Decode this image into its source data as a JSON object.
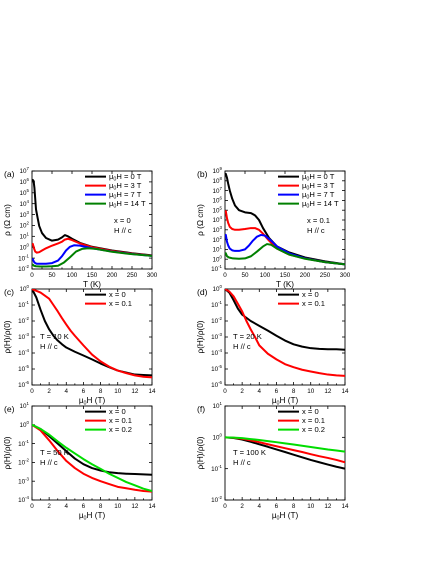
{
  "chart_data": [
    {
      "type": "line",
      "panel_label": "(a)",
      "xlabel": "T (K)",
      "ylabel": "ρ (Ω cm)",
      "yscale": "log",
      "xlim": [
        0,
        300
      ],
      "ylim_exp": [
        -2,
        7
      ],
      "x_ticks": [
        "0",
        "50",
        "100",
        "150",
        "200",
        "250",
        "300"
      ],
      "y_tick_exponents": [
        -2,
        -1,
        0,
        1,
        2,
        3,
        4,
        5,
        6,
        7
      ],
      "annotations": [
        "x = 0",
        "H // c"
      ],
      "legend_position": "top-right",
      "series": [
        {
          "name": "μ0H = 0 T",
          "color": "#000000",
          "x": [
            2,
            4,
            6,
            8,
            10,
            14,
            18,
            25,
            35,
            50,
            65,
            75,
            82,
            90,
            100,
            120,
            150,
            200,
            250,
            300
          ],
          "y": [
            1500000,
            1200000,
            300000,
            30000,
            3000,
            500,
            90,
            20,
            7,
            4,
            5,
            8,
            13,
            10,
            6,
            2.5,
            1.1,
            0.5,
            0.28,
            0.18
          ]
        },
        {
          "name": "μ0H = 3 T",
          "color": "#ff0000",
          "x": [
            2,
            5,
            8,
            12,
            18,
            25,
            35,
            50,
            65,
            75,
            82,
            90,
            100,
            120,
            150,
            200,
            250,
            300
          ],
          "y": [
            2,
            0.8,
            0.4,
            0.32,
            0.35,
            0.5,
            0.8,
            1.4,
            2.2,
            3.2,
            5,
            6,
            4.5,
            2.2,
            1,
            0.45,
            0.26,
            0.17
          ]
        },
        {
          "name": "μ0H = 7 T",
          "color": "#0000ff",
          "x": [
            2,
            5,
            8,
            12,
            18,
            25,
            35,
            50,
            65,
            75,
            85,
            95,
            105,
            120,
            150,
            200,
            250,
            300
          ],
          "y": [
            0.08,
            0.045,
            0.035,
            0.03,
            0.03,
            0.03,
            0.03,
            0.035,
            0.06,
            0.15,
            0.5,
            1.1,
            1.5,
            1.4,
            0.8,
            0.4,
            0.24,
            0.16
          ]
        },
        {
          "name": "μ0H = 14 T",
          "color": "#008000",
          "x": [
            2,
            5,
            10,
            20,
            35,
            50,
            65,
            80,
            95,
            110,
            125,
            140,
            160,
            200,
            250,
            300
          ],
          "y": [
            0.025,
            0.02,
            0.018,
            0.017,
            0.017,
            0.018,
            0.02,
            0.04,
            0.12,
            0.4,
            0.7,
            0.8,
            0.7,
            0.38,
            0.23,
            0.16
          ]
        }
      ]
    },
    {
      "type": "line",
      "panel_label": "(b)",
      "xlabel": "T (K)",
      "ylabel": "ρ (Ω cm)",
      "yscale": "log",
      "xlim": [
        0,
        300
      ],
      "ylim_exp": [
        -1,
        9
      ],
      "x_ticks": [
        "0",
        "50",
        "100",
        "150",
        "200",
        "250",
        "300"
      ],
      "y_tick_exponents": [
        -1,
        0,
        1,
        2,
        3,
        4,
        5,
        6,
        7,
        8,
        9
      ],
      "annotations": [
        "x = 0.1",
        "H // c"
      ],
      "legend_position": "top-right",
      "series": [
        {
          "name": "μ0H = 0 T",
          "color": "#000000",
          "x": [
            2,
            5,
            8,
            12,
            18,
            25,
            35,
            50,
            65,
            75,
            85,
            95,
            110,
            130,
            160,
            200,
            250,
            300
          ],
          "y": [
            500000000,
            200000000,
            50000000,
            10000000,
            1500000,
            300000,
            100000,
            60000,
            50000,
            30000,
            10000,
            1500,
            150,
            20,
            5,
            1.5,
            0.6,
            0.3
          ]
        },
        {
          "name": "μ0H = 3 T",
          "color": "#ff0000",
          "x": [
            2,
            5,
            8,
            12,
            18,
            25,
            35,
            50,
            65,
            75,
            85,
            95,
            110,
            130,
            160,
            200,
            250,
            300
          ],
          "y": [
            80000,
            15000,
            5000,
            2000,
            1200,
            1000,
            1000,
            1200,
            1500,
            1500,
            1000,
            400,
            80,
            12,
            3,
            1.2,
            0.5,
            0.3
          ]
        },
        {
          "name": "μ0H = 7 T",
          "color": "#0000ff",
          "x": [
            2,
            5,
            8,
            12,
            18,
            25,
            35,
            50,
            60,
            70,
            80,
            90,
            100,
            115,
            130,
            160,
            200,
            250,
            300
          ],
          "y": [
            300,
            60,
            25,
            12,
            8,
            7,
            7,
            10,
            25,
            80,
            200,
            300,
            250,
            80,
            20,
            4,
            1.2,
            0.5,
            0.3
          ]
        },
        {
          "name": "μ0H = 14 T",
          "color": "#008000",
          "x": [
            2,
            5,
            10,
            20,
            35,
            50,
            65,
            80,
            95,
            105,
            115,
            130,
            160,
            200,
            250,
            300
          ],
          "y": [
            4,
            2,
            1.5,
            1.2,
            1.1,
            1.2,
            2,
            6,
            20,
            35,
            30,
            12,
            3,
            1.1,
            0.5,
            0.3
          ]
        }
      ]
    },
    {
      "type": "line",
      "panel_label": "(c)",
      "xlabel": "μ0H (T)",
      "ylabel": "ρ(H)/ρ(0)",
      "yscale": "log",
      "xlim": [
        0,
        14
      ],
      "ylim_exp": [
        -6,
        0
      ],
      "x_ticks": [
        "0",
        "2",
        "4",
        "6",
        "8",
        "10",
        "12",
        "14"
      ],
      "y_tick_exponents": [
        -6,
        -5,
        -4,
        -3,
        -2,
        -1,
        0
      ],
      "annotations": [
        "T = 10 K",
        "H // c"
      ],
      "legend_position": "top-right",
      "series": [
        {
          "name": "x = 0",
          "color": "#000000",
          "x": [
            0,
            0.5,
            1,
            1.5,
            2,
            2.5,
            3,
            3.5,
            4,
            5,
            6,
            7,
            8,
            9,
            10,
            11,
            12,
            13,
            14
          ],
          "y": [
            1,
            0.3,
            0.05,
            0.01,
            0.003,
            0.0012,
            0.0006,
            0.00035,
            0.00022,
            0.00012,
            7e-05,
            4e-05,
            2.2e-05,
            1.3e-05,
            8e-06,
            6e-06,
            4.5e-06,
            4.2e-06,
            4e-06
          ]
        },
        {
          "name": "x = 0.1",
          "color": "#ff0000",
          "x": [
            0,
            1,
            2,
            2.5,
            3,
            3.5,
            4,
            4.5,
            5,
            6,
            7,
            8,
            9,
            10,
            11,
            12,
            13,
            14
          ],
          "y": [
            1,
            0.6,
            0.25,
            0.1,
            0.04,
            0.015,
            0.006,
            0.0025,
            0.0012,
            0.0003,
            8e-05,
            3e-05,
            1.4e-05,
            8e-06,
            5.5e-06,
            4e-06,
            3.3e-06,
            3e-06
          ]
        }
      ]
    },
    {
      "type": "line",
      "panel_label": "(d)",
      "xlabel": "μ0H (T)",
      "ylabel": "ρ(H)/ρ(0)",
      "yscale": "log",
      "xlim": [
        0,
        14
      ],
      "ylim_exp": [
        -6,
        0
      ],
      "x_ticks": [
        "0",
        "2",
        "4",
        "6",
        "8",
        "10",
        "12",
        "14"
      ],
      "y_tick_exponents": [
        -6,
        -5,
        -4,
        -3,
        -2,
        -1,
        0
      ],
      "annotations": [
        "T = 20 K",
        "H // c"
      ],
      "legend_position": "top-right",
      "series": [
        {
          "name": "x = 0",
          "color": "#000000",
          "x": [
            0,
            0.5,
            1,
            1.5,
            2,
            3,
            4,
            5,
            6,
            7,
            8,
            9,
            10,
            11,
            12,
            13,
            14
          ],
          "y": [
            1,
            0.6,
            0.2,
            0.06,
            0.025,
            0.01,
            0.005,
            0.0025,
            0.0012,
            0.0006,
            0.00035,
            0.00025,
            0.0002,
            0.00018,
            0.00017,
            0.00017,
            0.00016
          ]
        },
        {
          "name": "x = 0.1",
          "color": "#ff0000",
          "x": [
            0,
            0.5,
            1,
            1.5,
            2,
            2.5,
            3,
            3.5,
            4,
            5,
            6,
            7,
            8,
            9,
            10,
            11,
            12,
            13,
            14
          ],
          "y": [
            1,
            0.7,
            0.35,
            0.12,
            0.04,
            0.01,
            0.003,
            0.001,
            0.0003,
            9e-05,
            4e-05,
            2e-05,
            1.3e-05,
            9e-06,
            7e-06,
            5.5e-06,
            4.5e-06,
            4e-06,
            3.7e-06
          ]
        }
      ]
    },
    {
      "type": "line",
      "panel_label": "(e)",
      "xlabel": "μ0H (T)",
      "ylabel": "ρ(H)/ρ(0)",
      "yscale": "log",
      "xlim": [
        0,
        14
      ],
      "ylim_exp": [
        -4,
        1
      ],
      "x_ticks": [
        "0",
        "2",
        "4",
        "6",
        "8",
        "10",
        "12",
        "14"
      ],
      "y_tick_exponents": [
        -4,
        -3,
        -2,
        -1,
        0,
        1
      ],
      "annotations": [
        "T = 50 K",
        "H // c"
      ],
      "legend_position": "top-right",
      "series": [
        {
          "name": "x = 0",
          "color": "#000000",
          "x": [
            0,
            1,
            2,
            3,
            4,
            5,
            6,
            7,
            8,
            9,
            10,
            11,
            12,
            13,
            14
          ],
          "y": [
            1,
            0.6,
            0.25,
            0.1,
            0.04,
            0.016,
            0.008,
            0.005,
            0.0037,
            0.003,
            0.0027,
            0.0025,
            0.0024,
            0.0023,
            0.0022
          ]
        },
        {
          "name": "x = 0.1",
          "color": "#ff0000",
          "x": [
            0,
            1,
            2,
            3,
            4,
            5,
            6,
            7,
            8,
            9,
            10,
            11,
            12,
            13,
            14
          ],
          "y": [
            1,
            0.5,
            0.15,
            0.04,
            0.012,
            0.005,
            0.0025,
            0.0015,
            0.001,
            0.0007,
            0.0005,
            0.00042,
            0.00035,
            0.0003,
            0.00028
          ]
        },
        {
          "name": "x = 0.2",
          "color": "#00dd00",
          "x": [
            0,
            1,
            2,
            3,
            4,
            5,
            6,
            7,
            8,
            9,
            10,
            11,
            12,
            13,
            14
          ],
          "y": [
            1,
            0.6,
            0.3,
            0.13,
            0.06,
            0.03,
            0.015,
            0.008,
            0.0045,
            0.0025,
            0.0015,
            0.0009,
            0.0006,
            0.0004,
            0.0003
          ]
        }
      ]
    },
    {
      "type": "line",
      "panel_label": "(f)",
      "xlabel": "μ0H (T)",
      "ylabel": "ρ(H)/ρ(0)",
      "yscale": "log",
      "xlim": [
        0,
        14
      ],
      "ylim_exp": [
        -2,
        1
      ],
      "x_ticks": [
        "0",
        "2",
        "4",
        "6",
        "8",
        "10",
        "12",
        "14"
      ],
      "y_tick_exponents": [
        -2,
        -1,
        0,
        1
      ],
      "annotations": [
        "T = 100 K",
        "H // c"
      ],
      "legend_position": "top-right",
      "series": [
        {
          "name": "x = 0",
          "color": "#000000",
          "x": [
            0,
            1,
            2,
            3,
            4,
            5,
            6,
            7,
            8,
            9,
            10,
            11,
            12,
            13,
            14
          ],
          "y": [
            1,
            0.95,
            0.85,
            0.72,
            0.6,
            0.5,
            0.41,
            0.34,
            0.28,
            0.23,
            0.19,
            0.16,
            0.135,
            0.115,
            0.1
          ]
        },
        {
          "name": "x = 0.1",
          "color": "#ff0000",
          "x": [
            0,
            1,
            2,
            3,
            4,
            5,
            6,
            7,
            8,
            9,
            10,
            11,
            12,
            13,
            14
          ],
          "y": [
            1,
            0.97,
            0.9,
            0.8,
            0.7,
            0.6,
            0.52,
            0.45,
            0.39,
            0.34,
            0.29,
            0.25,
            0.22,
            0.19,
            0.16
          ]
        },
        {
          "name": "x = 0.2",
          "color": "#00dd00",
          "x": [
            0,
            1,
            2,
            3,
            4,
            5,
            6,
            7,
            8,
            9,
            10,
            11,
            12,
            13,
            14
          ],
          "y": [
            1,
            0.98,
            0.94,
            0.88,
            0.82,
            0.76,
            0.7,
            0.64,
            0.59,
            0.54,
            0.49,
            0.45,
            0.41,
            0.38,
            0.35
          ]
        }
      ]
    }
  ]
}
